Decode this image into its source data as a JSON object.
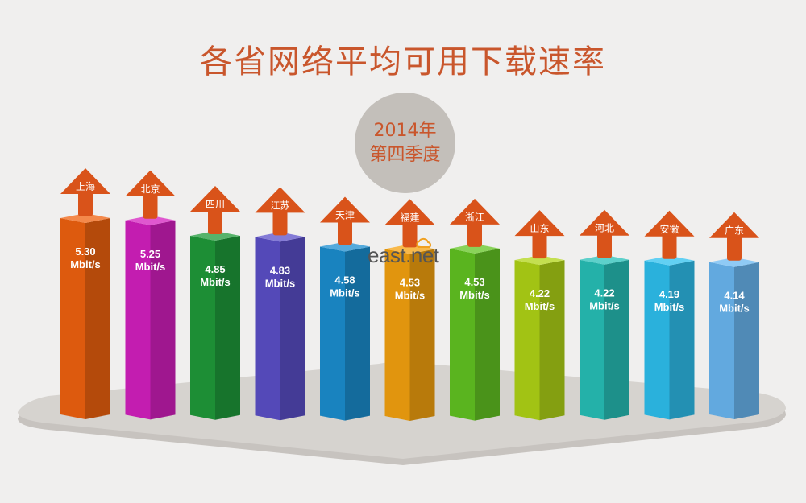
{
  "title": "各省网络平均可用下载速率",
  "period": {
    "line1": "2014年",
    "line2": "第四季度"
  },
  "logo": {
    "text": "east.net"
  },
  "chart_data": {
    "type": "bar",
    "title": "各省网络平均可用下载速率",
    "unit": "Mbit/s",
    "categories": [
      "上海",
      "北京",
      "四川",
      "江苏",
      "天津",
      "福建",
      "浙江",
      "山东",
      "河北",
      "安徽",
      "广东"
    ],
    "values": [
      5.3,
      5.25,
      4.85,
      4.83,
      4.58,
      4.53,
      4.53,
      4.22,
      4.22,
      4.19,
      4.14
    ],
    "value_labels": [
      "5.30",
      "5.25",
      "4.85",
      "4.83",
      "4.58",
      "4.53",
      "4.53",
      "4.22",
      "4.22",
      "4.19",
      "4.14"
    ],
    "colors": [
      "#f0620f",
      "#d41fbf",
      "#1f9a3a",
      "#5b4fc8",
      "#1b8ed0",
      "#f5a20f",
      "#62c422",
      "#b0d416",
      "#27c0b8",
      "#2ec0ef",
      "#6ab8f2"
    ],
    "arrow_color": "#d9531a",
    "grid": false,
    "legend": "none"
  }
}
